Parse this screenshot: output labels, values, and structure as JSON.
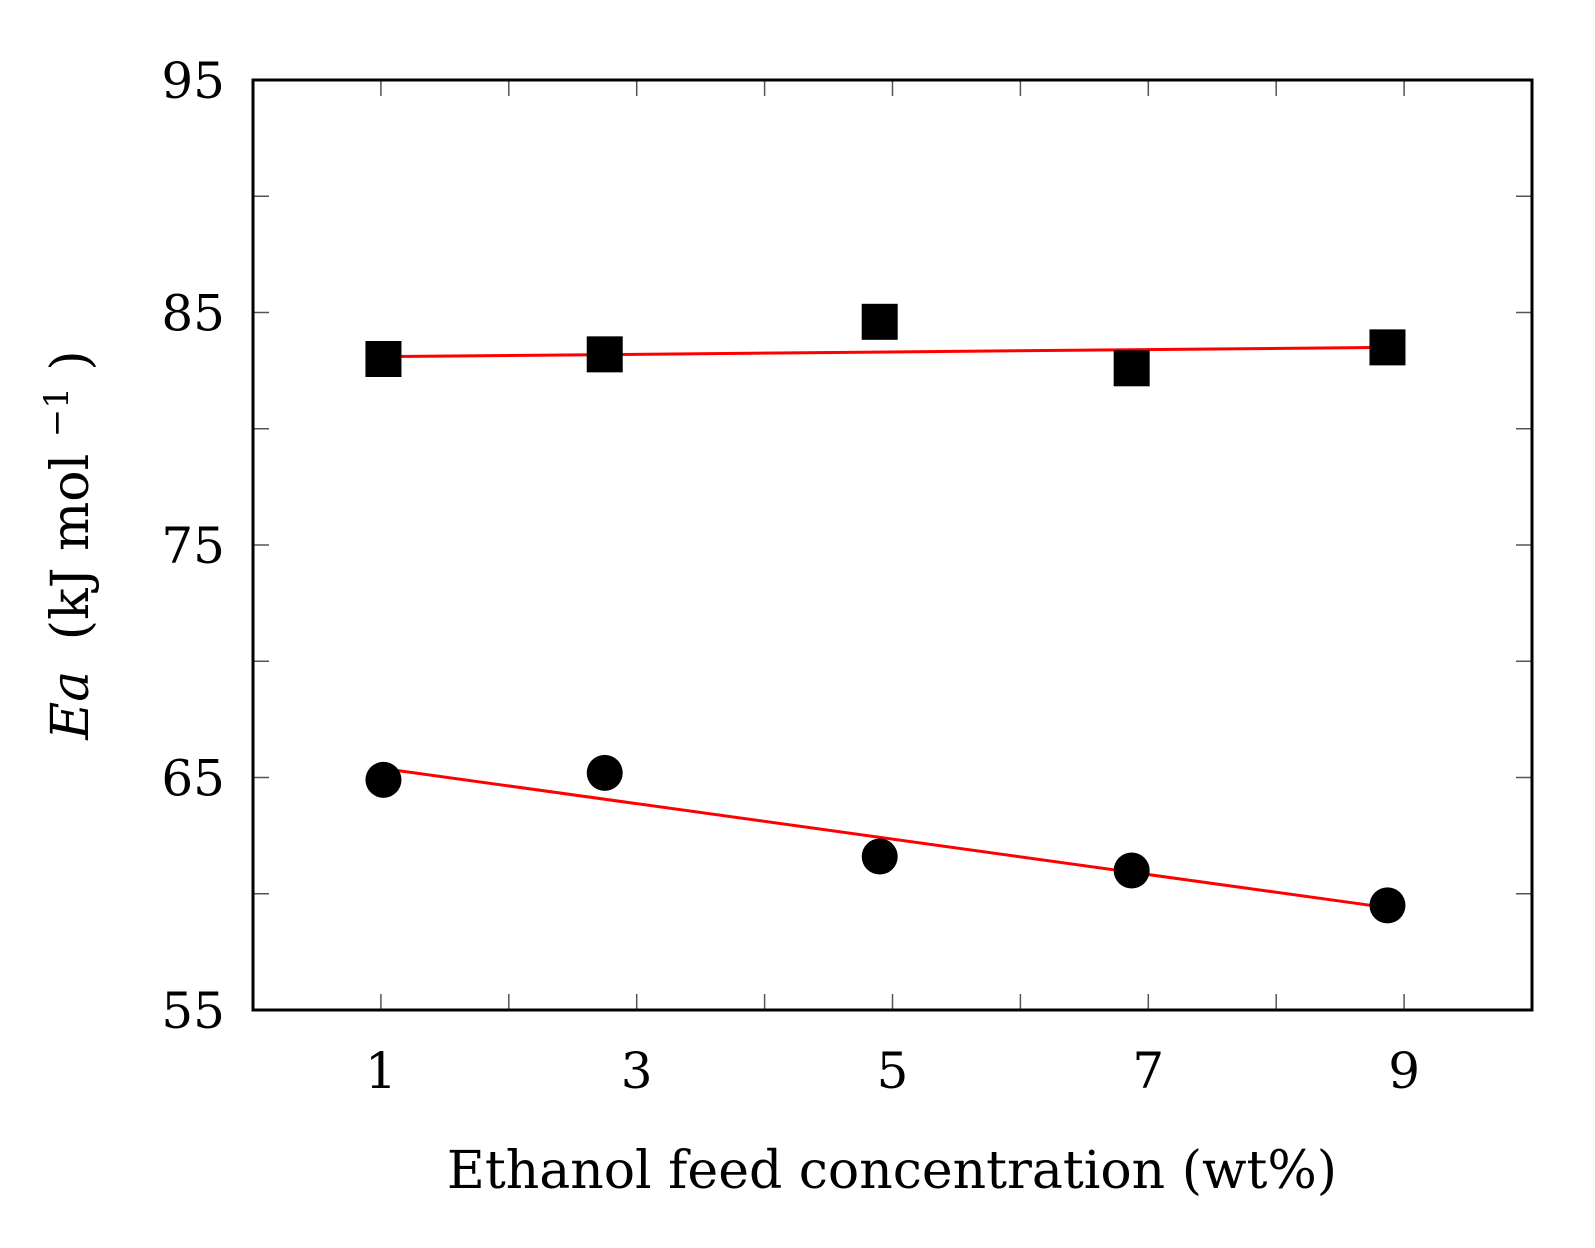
{
  "chart_data": {
    "type": "scatter",
    "title": "",
    "xlabel": "Ethanol feed concentration (wt%)",
    "ylabel": {
      "var": "Ea",
      "open": "(kJ mol",
      "sup": "−1",
      "close": ")"
    },
    "xlim": [
      0,
      10
    ],
    "ylim": [
      55,
      95
    ],
    "x_ticks": [
      1,
      3,
      5,
      7,
      9
    ],
    "x_minor_ticks": [
      1,
      2,
      3,
      4,
      5,
      6,
      7,
      8,
      9
    ],
    "y_ticks": [
      55,
      65,
      75,
      85,
      95
    ],
    "y_minor_ticks": [
      55,
      60,
      65,
      70,
      75,
      80,
      85,
      90,
      95
    ],
    "grid": false,
    "colors": {
      "marker": "#000000",
      "fit": "#ff0000",
      "axis": "#000000",
      "tick": "#555555"
    },
    "series": [
      {
        "name": "squares",
        "marker": "square",
        "x": [
          1.02,
          2.75,
          4.9,
          6.87,
          8.87
        ],
        "y": [
          83.0,
          83.2,
          84.6,
          82.6,
          83.5
        ],
        "fit": {
          "x": [
            1.0,
            8.87
          ],
          "y": [
            83.1,
            83.5
          ]
        }
      },
      {
        "name": "circles",
        "marker": "circle",
        "x": [
          1.02,
          2.75,
          4.9,
          6.87,
          8.87
        ],
        "y": [
          64.9,
          65.2,
          61.6,
          61.0,
          59.5
        ],
        "fit": {
          "x": [
            1.0,
            8.87
          ],
          "y": [
            65.4,
            59.4
          ]
        }
      }
    ]
  }
}
